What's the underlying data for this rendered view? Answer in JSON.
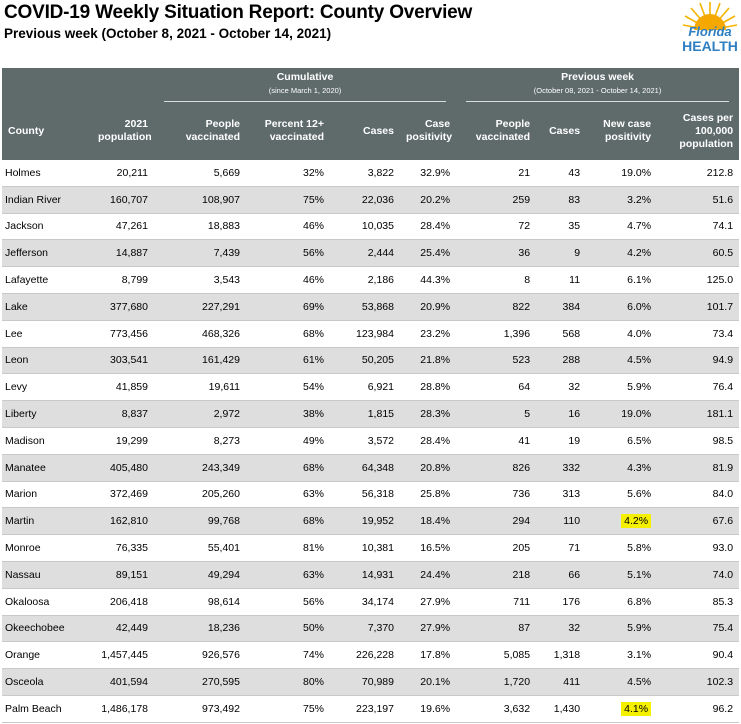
{
  "report": {
    "title": "COVID-19 Weekly Situation Report: County Overview",
    "subtitle": "Previous week (October 8, 2021 - October 14, 2021)",
    "logo_text_1": "Florida",
    "logo_text_2": "HEALTH"
  },
  "header": {
    "cumulative_group": "Cumulative",
    "cumulative_sub": "(since March 1, 2020)",
    "previous_group": "Previous week",
    "previous_sub": "(October 08, 2021 - October 14, 2021)",
    "columns": [
      "County",
      "2021 population",
      "People vaccinated",
      "Percent 12+ vaccinated",
      "Cases",
      "Case positivity",
      "People vaccinated",
      "Cases",
      "New case positivity",
      "Cases per 100,000 population"
    ]
  },
  "colors": {
    "header_bg": "#5f6b6b",
    "alt_row_bg": "#dedede",
    "highlight": "#f4f000",
    "logo_blue": "#2e7fc2"
  },
  "rows": [
    {
      "county": "Holmes",
      "pop": "20,211",
      "vacc": "5,669",
      "pct": "32%",
      "cases": "3,822",
      "pos": "32.9%",
      "wvacc": "21",
      "wcases": "43",
      "wpos": "19.0%",
      "per100k": "212.8"
    },
    {
      "county": "Indian River",
      "pop": "160,707",
      "vacc": "108,907",
      "pct": "75%",
      "cases": "22,036",
      "pos": "20.2%",
      "wvacc": "259",
      "wcases": "83",
      "wpos": "3.2%",
      "per100k": "51.6"
    },
    {
      "county": "Jackson",
      "pop": "47,261",
      "vacc": "18,883",
      "pct": "46%",
      "cases": "10,035",
      "pos": "28.4%",
      "wvacc": "72",
      "wcases": "35",
      "wpos": "4.7%",
      "per100k": "74.1"
    },
    {
      "county": "Jefferson",
      "pop": "14,887",
      "vacc": "7,439",
      "pct": "56%",
      "cases": "2,444",
      "pos": "25.4%",
      "wvacc": "36",
      "wcases": "9",
      "wpos": "4.2%",
      "per100k": "60.5"
    },
    {
      "county": "Lafayette",
      "pop": "8,799",
      "vacc": "3,543",
      "pct": "46%",
      "cases": "2,186",
      "pos": "44.3%",
      "wvacc": "8",
      "wcases": "11",
      "wpos": "6.1%",
      "per100k": "125.0"
    },
    {
      "county": "Lake",
      "pop": "377,680",
      "vacc": "227,291",
      "pct": "69%",
      "cases": "53,868",
      "pos": "20.9%",
      "wvacc": "822",
      "wcases": "384",
      "wpos": "6.0%",
      "per100k": "101.7"
    },
    {
      "county": "Lee",
      "pop": "773,456",
      "vacc": "468,326",
      "pct": "68%",
      "cases": "123,984",
      "pos": "23.2%",
      "wvacc": "1,396",
      "wcases": "568",
      "wpos": "4.0%",
      "per100k": "73.4"
    },
    {
      "county": "Leon",
      "pop": "303,541",
      "vacc": "161,429",
      "pct": "61%",
      "cases": "50,205",
      "pos": "21.8%",
      "wvacc": "523",
      "wcases": "288",
      "wpos": "4.5%",
      "per100k": "94.9"
    },
    {
      "county": "Levy",
      "pop": "41,859",
      "vacc": "19,611",
      "pct": "54%",
      "cases": "6,921",
      "pos": "28.8%",
      "wvacc": "64",
      "wcases": "32",
      "wpos": "5.9%",
      "per100k": "76.4"
    },
    {
      "county": "Liberty",
      "pop": "8,837",
      "vacc": "2,972",
      "pct": "38%",
      "cases": "1,815",
      "pos": "28.3%",
      "wvacc": "5",
      "wcases": "16",
      "wpos": "19.0%",
      "per100k": "181.1"
    },
    {
      "county": "Madison",
      "pop": "19,299",
      "vacc": "8,273",
      "pct": "49%",
      "cases": "3,572",
      "pos": "28.4%",
      "wvacc": "41",
      "wcases": "19",
      "wpos": "6.5%",
      "per100k": "98.5"
    },
    {
      "county": "Manatee",
      "pop": "405,480",
      "vacc": "243,349",
      "pct": "68%",
      "cases": "64,348",
      "pos": "20.8%",
      "wvacc": "826",
      "wcases": "332",
      "wpos": "4.3%",
      "per100k": "81.9"
    },
    {
      "county": "Marion",
      "pop": "372,469",
      "vacc": "205,260",
      "pct": "63%",
      "cases": "56,318",
      "pos": "25.8%",
      "wvacc": "736",
      "wcases": "313",
      "wpos": "5.6%",
      "per100k": "84.0"
    },
    {
      "county": "Martin",
      "pop": "162,810",
      "vacc": "99,768",
      "pct": "68%",
      "cases": "19,952",
      "pos": "18.4%",
      "wvacc": "294",
      "wcases": "110",
      "wpos": "4.2%",
      "per100k": "67.6",
      "highlight": true
    },
    {
      "county": "Monroe",
      "pop": "76,335",
      "vacc": "55,401",
      "pct": "81%",
      "cases": "10,381",
      "pos": "16.5%",
      "wvacc": "205",
      "wcases": "71",
      "wpos": "5.8%",
      "per100k": "93.0"
    },
    {
      "county": "Nassau",
      "pop": "89,151",
      "vacc": "49,294",
      "pct": "63%",
      "cases": "14,931",
      "pos": "24.4%",
      "wvacc": "218",
      "wcases": "66",
      "wpos": "5.1%",
      "per100k": "74.0"
    },
    {
      "county": "Okaloosa",
      "pop": "206,418",
      "vacc": "98,614",
      "pct": "56%",
      "cases": "34,174",
      "pos": "27.9%",
      "wvacc": "711",
      "wcases": "176",
      "wpos": "6.8%",
      "per100k": "85.3"
    },
    {
      "county": "Okeechobee",
      "pop": "42,449",
      "vacc": "18,236",
      "pct": "50%",
      "cases": "7,370",
      "pos": "27.9%",
      "wvacc": "87",
      "wcases": "32",
      "wpos": "5.9%",
      "per100k": "75.4"
    },
    {
      "county": "Orange",
      "pop": "1,457,445",
      "vacc": "926,576",
      "pct": "74%",
      "cases": "226,228",
      "pos": "17.8%",
      "wvacc": "5,085",
      "wcases": "1,318",
      "wpos": "3.1%",
      "per100k": "90.4"
    },
    {
      "county": "Osceola",
      "pop": "401,594",
      "vacc": "270,595",
      "pct": "80%",
      "cases": "70,989",
      "pos": "20.1%",
      "wvacc": "1,720",
      "wcases": "411",
      "wpos": "4.5%",
      "per100k": "102.3"
    },
    {
      "county": "Palm Beach",
      "pop": "1,486,178",
      "vacc": "973,492",
      "pct": "75%",
      "cases": "223,197",
      "pos": "19.6%",
      "wvacc": "3,632",
      "wcases": "1,430",
      "wpos": "4.1%",
      "per100k": "96.2",
      "highlight": true
    }
  ]
}
